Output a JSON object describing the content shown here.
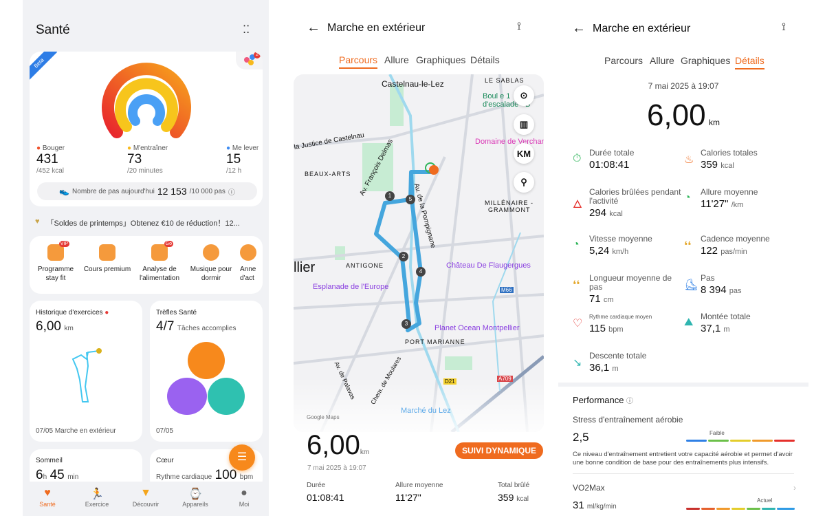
{
  "health": {
    "title": "Santé",
    "beta": "Beta",
    "notif_count": "2",
    "rings": [
      {
        "label": "Bouger",
        "value": "431",
        "goal": "/452 kcal",
        "color": "#f0502a"
      },
      {
        "label": "M'entraîner",
        "value": "73",
        "goal": "/20 minutes",
        "color": "#f7b91c"
      },
      {
        "label": "Me lever",
        "value": "15",
        "goal": "/12 h",
        "color": "#3b8af2"
      }
    ],
    "steps": {
      "label": "Nombre de pas aujourd'hui",
      "value": "12 153",
      "goal": "/10 000 pas"
    },
    "promo": "「Soldes de printemps」Obtenez €10 de réduction！12...",
    "services": [
      {
        "label": "Programme stay fit",
        "badge": "VIP"
      },
      {
        "label": "Cours premium"
      },
      {
        "label": "Analyse de l'alimentation",
        "badge": "Go"
      },
      {
        "label": "Musique pour dormir"
      },
      {
        "label": "Anne d'act"
      }
    ],
    "history": {
      "title": "Historique d'exercices",
      "value": "6,00",
      "unit": "km",
      "date": "07/05",
      "activity": "Marche en extérieur"
    },
    "clover": {
      "title": "Trèfles Santé",
      "value": "4/7",
      "sub": "Tâches accomplies",
      "date": "07/05"
    },
    "sleep": {
      "title": "Sommeil",
      "h": "6",
      "h_unit": "h",
      "m": "45",
      "m_unit": "min"
    },
    "heart": {
      "title": "Cœur",
      "label": "Rythme cardiaque",
      "value": "100",
      "unit": "bpm"
    },
    "nav": [
      {
        "label": "Santé",
        "active": true
      },
      {
        "label": "Exercice"
      },
      {
        "label": "Découvrir"
      },
      {
        "label": "Appareils"
      },
      {
        "label": "Moi"
      }
    ]
  },
  "route": {
    "title": "Marche en extérieur",
    "tabs": [
      "Parcours",
      "Allure",
      "Graphiques",
      "Détails"
    ],
    "active_tab": "Parcours",
    "map_labels": {
      "castelnau": "Castelnau-le-Lez",
      "sablas": "LE SABLAS",
      "boul": "Boul     e 1",
      "escalade": "d'escalade - B",
      "justice": "la Justice de Castelnau",
      "delmas": "Av. François Delmas",
      "verchant": "Domaine de Verchan",
      "beaux_arts": "BEAUX-ARTS",
      "millenaire": "MILLÉNAIRE -",
      "grammont": "GRAMMONT",
      "pompignane": "Av. de la Pompignane",
      "montpellier": "llier",
      "antigone": "ANTIGONE",
      "flaugergues": "Château De Flaugergues",
      "esplanade": "Esplanade de l'Europe",
      "m66": "M66",
      "planet": "Planet Ocean Montpellier",
      "port": "PORT MARIANNE",
      "palavas": "Av. de Palavas",
      "moulares": "Chem. de Moulares",
      "d21": "D21",
      "a709": "A709",
      "marche": "Marché du Lez",
      "google": "Google Maps"
    },
    "map_buttons": {
      "km": "KM"
    },
    "markers": [
      "1",
      "2",
      "3",
      "4",
      "5"
    ],
    "distance": "6,00",
    "unit": "km",
    "date": "7 mai 2025 à 19:07",
    "dynamic": "SUIVI DYNAMIQUE",
    "stats": [
      {
        "label": "Durée",
        "value": "01:08:41",
        "unit": ""
      },
      {
        "label": "Allure moyenne",
        "value": "11'27\"",
        "unit": ""
      },
      {
        "label": "Total brûlé",
        "value": "359",
        "unit": "kcal"
      }
    ],
    "route_color": "#45a6dd"
  },
  "details": {
    "title": "Marche en extérieur",
    "tabs": [
      "Parcours",
      "Allure",
      "Graphiques",
      "Détails"
    ],
    "active_tab": "Détails",
    "date": "7 mai 2025 à 19:07",
    "distance": "6,00",
    "unit": "km",
    "metrics": [
      {
        "label": "Durée totale",
        "value": "01:08:41",
        "unit": "",
        "icon": "timer-icon"
      },
      {
        "label": "Calories totales",
        "value": "359",
        "unit": "kcal",
        "icon": "calories-icon"
      },
      {
        "label": "Calories brûlées pendant l'activité",
        "value": "294",
        "unit": "kcal",
        "icon": "flame-icon"
      },
      {
        "label": "Allure moyenne",
        "value": "11'27\"",
        "unit": "/km",
        "icon": "pace-icon"
      },
      {
        "label": "Vitesse moyenne",
        "value": "5,24",
        "unit": "km/h",
        "icon": "speedometer-icon"
      },
      {
        "label": "Cadence moyenne",
        "value": "122",
        "unit": "pas/min",
        "icon": "footsteps-icon"
      },
      {
        "label": "Longueur moyenne de pas",
        "value": "71",
        "unit": "cm",
        "icon": "stride-icon"
      },
      {
        "label": "Pas",
        "value": "8 394",
        "unit": "pas",
        "icon": "shoe-icon"
      },
      {
        "label": "Rythme cardiaque moyen",
        "value": "115",
        "unit": "bpm",
        "icon": "heart-icon"
      },
      {
        "label": "Montée totale",
        "value": "37,1",
        "unit": "m",
        "icon": "ascent-icon"
      },
      {
        "label": "Descente totale",
        "value": "36,1",
        "unit": "m",
        "icon": "descent-icon"
      }
    ],
    "performance": {
      "title": "Performance",
      "stress_label": "Stress d'entraînement aérobie",
      "stress_value": "2,5",
      "stress_level": "Faible",
      "stress_desc": "Ce niveau d'entraînement entretient votre capacité aérobie et permet d'avoir une bonne condition de base pour des entraînements plus intensifs.",
      "vo2_label": "VO2Max",
      "vo2_value": "31",
      "vo2_unit": "ml/kg/min",
      "vo2_marker": "Actuel"
    }
  }
}
